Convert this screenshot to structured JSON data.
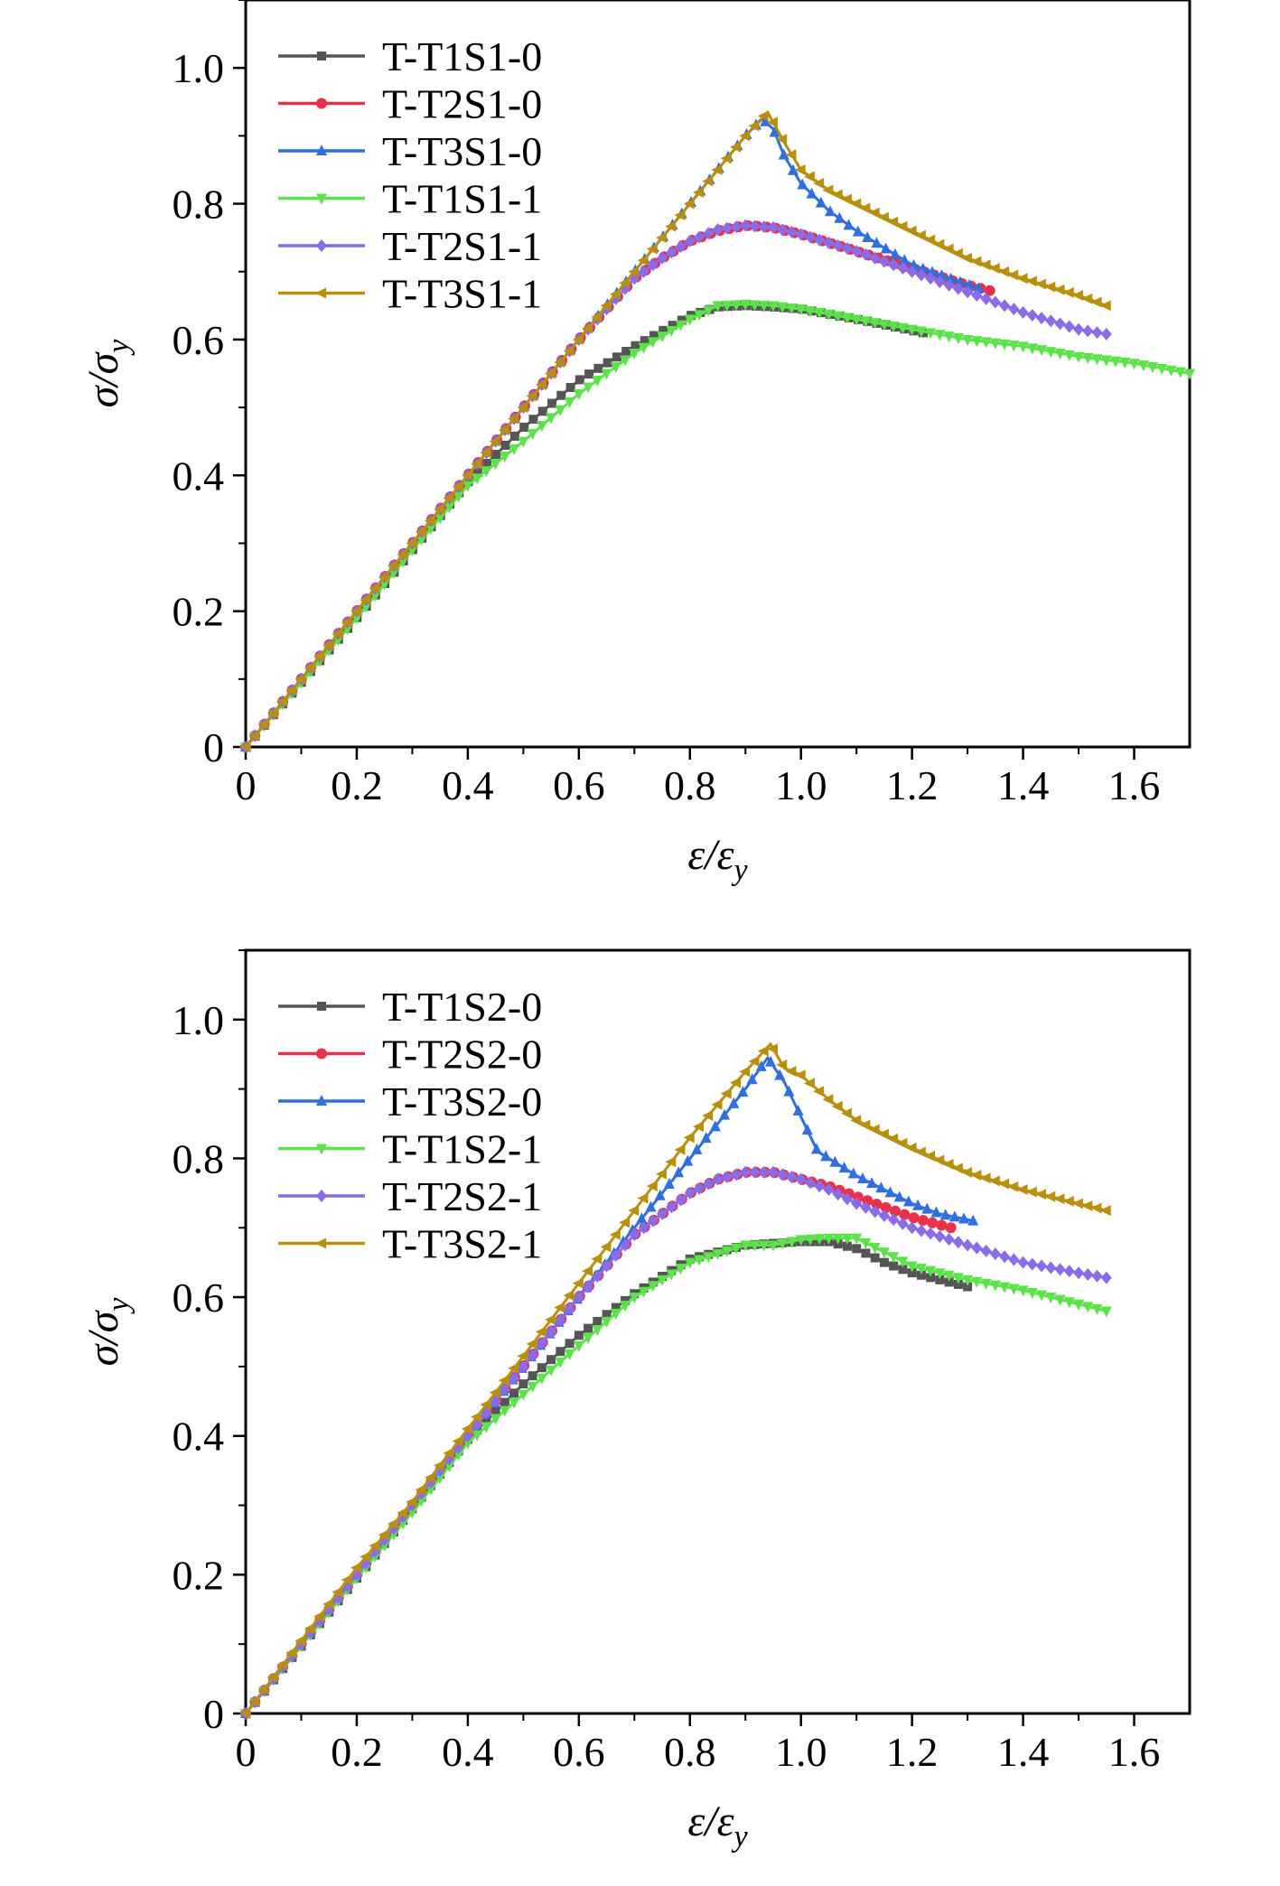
{
  "chart_data": [
    {
      "type": "line",
      "title": "",
      "xlabel": "ε/ε",
      "xlabel_sub": "y",
      "ylabel": "σ/σ",
      "ylabel_sub": "y",
      "xlim": [
        0,
        1.7
      ],
      "ylim": [
        0,
        1.1
      ],
      "xticks": [
        0,
        0.2,
        0.4,
        0.6,
        0.8,
        1.0,
        1.2,
        1.4,
        1.6
      ],
      "xtick_labels": [
        "0",
        "0.2",
        "0.4",
        "0.6",
        "0.8",
        "1.0",
        "1.2",
        "1.4",
        "1.6"
      ],
      "yticks": [
        0,
        0.2,
        0.4,
        0.6,
        0.8,
        1.0
      ],
      "ytick_labels": [
        "0",
        "0.2",
        "0.4",
        "0.6",
        "0.8",
        "1.0"
      ],
      "legend_position": "top-left",
      "series": [
        {
          "name": "T-T1S1-0",
          "color": "#555555",
          "marker": "square",
          "x": [
            0,
            0.1,
            0.2,
            0.3,
            0.4,
            0.5,
            0.6,
            0.7,
            0.8,
            0.85,
            0.9,
            0.95,
            1.0,
            1.1,
            1.22
          ],
          "y": [
            0,
            0.095,
            0.19,
            0.29,
            0.39,
            0.47,
            0.54,
            0.59,
            0.635,
            0.648,
            0.65,
            0.648,
            0.645,
            0.63,
            0.61
          ]
        },
        {
          "name": "T-T2S1-0",
          "color": "#e8314a",
          "marker": "circle",
          "x": [
            0,
            0.1,
            0.2,
            0.3,
            0.4,
            0.5,
            0.6,
            0.7,
            0.75,
            0.8,
            0.85,
            0.9,
            0.95,
            1.0,
            1.1,
            1.2,
            1.3,
            1.34
          ],
          "y": [
            0,
            0.1,
            0.2,
            0.3,
            0.4,
            0.5,
            0.6,
            0.69,
            0.72,
            0.745,
            0.76,
            0.768,
            0.765,
            0.755,
            0.73,
            0.705,
            0.68,
            0.672
          ]
        },
        {
          "name": "T-T3S1-0",
          "color": "#2f6fe0",
          "marker": "triangle-up",
          "x": [
            0,
            0.1,
            0.2,
            0.3,
            0.4,
            0.5,
            0.6,
            0.7,
            0.8,
            0.9,
            0.93,
            0.95,
            0.97,
            1.0,
            1.05,
            1.1,
            1.15,
            1.2,
            1.25,
            1.32
          ],
          "y": [
            0,
            0.1,
            0.2,
            0.3,
            0.4,
            0.5,
            0.6,
            0.7,
            0.8,
            0.9,
            0.925,
            0.91,
            0.87,
            0.83,
            0.79,
            0.76,
            0.735,
            0.71,
            0.695,
            0.675
          ]
        },
        {
          "name": "T-T1S1-1",
          "color": "#5ce34a",
          "marker": "triangle-down",
          "x": [
            0,
            0.1,
            0.2,
            0.3,
            0.4,
            0.5,
            0.6,
            0.7,
            0.8,
            0.85,
            0.9,
            0.95,
            1.0,
            1.1,
            1.2,
            1.3,
            1.4,
            1.5,
            1.6,
            1.7
          ],
          "y": [
            0,
            0.095,
            0.19,
            0.29,
            0.385,
            0.45,
            0.52,
            0.58,
            0.63,
            0.65,
            0.652,
            0.65,
            0.645,
            0.63,
            0.615,
            0.6,
            0.59,
            0.575,
            0.565,
            0.55
          ]
        },
        {
          "name": "T-T2S1-1",
          "color": "#8a6be8",
          "marker": "diamond",
          "x": [
            0,
            0.1,
            0.2,
            0.3,
            0.4,
            0.5,
            0.6,
            0.7,
            0.75,
            0.8,
            0.85,
            0.9,
            0.95,
            1.0,
            1.1,
            1.2,
            1.3,
            1.4,
            1.5,
            1.55
          ],
          "y": [
            0,
            0.1,
            0.2,
            0.3,
            0.4,
            0.5,
            0.6,
            0.69,
            0.72,
            0.745,
            0.762,
            0.768,
            0.765,
            0.755,
            0.73,
            0.7,
            0.67,
            0.64,
            0.615,
            0.608
          ]
        },
        {
          "name": "T-T3S1-1",
          "color": "#b8900e",
          "marker": "triangle-left",
          "x": [
            0,
            0.1,
            0.2,
            0.3,
            0.4,
            0.5,
            0.6,
            0.7,
            0.8,
            0.9,
            0.94,
            0.97,
            1.0,
            1.05,
            1.1,
            1.2,
            1.3,
            1.4,
            1.5,
            1.55
          ],
          "y": [
            0,
            0.1,
            0.2,
            0.3,
            0.4,
            0.5,
            0.6,
            0.7,
            0.8,
            0.9,
            0.935,
            0.89,
            0.85,
            0.82,
            0.8,
            0.76,
            0.72,
            0.69,
            0.665,
            0.65
          ]
        }
      ]
    },
    {
      "type": "line",
      "title": "",
      "xlabel": "ε/ε",
      "xlabel_sub": "y",
      "ylabel": "σ/σ",
      "ylabel_sub": "y",
      "xlim": [
        0,
        1.7
      ],
      "ylim": [
        0,
        1.1
      ],
      "xticks": [
        0,
        0.2,
        0.4,
        0.6,
        0.8,
        1.0,
        1.2,
        1.4,
        1.6
      ],
      "xtick_labels": [
        "0",
        "0.2",
        "0.4",
        "0.6",
        "0.8",
        "1.0",
        "1.2",
        "1.4",
        "1.6"
      ],
      "yticks": [
        0,
        0.2,
        0.4,
        0.6,
        0.8,
        1.0
      ],
      "ytick_labels": [
        "0",
        "0.2",
        "0.4",
        "0.6",
        "0.8",
        "1.0"
      ],
      "legend_position": "top-left",
      "series": [
        {
          "name": "T-T1S2-0",
          "color": "#555555",
          "marker": "square",
          "x": [
            0,
            0.1,
            0.2,
            0.3,
            0.4,
            0.5,
            0.6,
            0.7,
            0.8,
            0.9,
            1.0,
            1.05,
            1.1,
            1.15,
            1.2,
            1.25,
            1.3
          ],
          "y": [
            0,
            0.097,
            0.195,
            0.295,
            0.395,
            0.475,
            0.545,
            0.605,
            0.655,
            0.675,
            0.68,
            0.68,
            0.67,
            0.65,
            0.635,
            0.625,
            0.615
          ]
        },
        {
          "name": "T-T2S2-0",
          "color": "#e8314a",
          "marker": "circle",
          "x": [
            0,
            0.1,
            0.2,
            0.3,
            0.4,
            0.5,
            0.6,
            0.7,
            0.8,
            0.85,
            0.9,
            0.95,
            1.0,
            1.05,
            1.1,
            1.15,
            1.2,
            1.27
          ],
          "y": [
            0,
            0.1,
            0.2,
            0.3,
            0.4,
            0.5,
            0.6,
            0.69,
            0.75,
            0.77,
            0.78,
            0.78,
            0.77,
            0.76,
            0.745,
            0.73,
            0.715,
            0.7
          ]
        },
        {
          "name": "T-T3S2-0",
          "color": "#2f6fe0",
          "marker": "triangle-up",
          "x": [
            0,
            0.1,
            0.2,
            0.3,
            0.4,
            0.5,
            0.6,
            0.7,
            0.8,
            0.9,
            0.94,
            0.97,
            1.0,
            1.03,
            1.07,
            1.1,
            1.15,
            1.2,
            1.25,
            1.31
          ],
          "y": [
            0,
            0.1,
            0.2,
            0.3,
            0.4,
            0.5,
            0.6,
            0.7,
            0.8,
            0.9,
            0.945,
            0.91,
            0.86,
            0.81,
            0.79,
            0.775,
            0.755,
            0.735,
            0.72,
            0.71
          ]
        },
        {
          "name": "T-T1S2-1",
          "color": "#5ce34a",
          "marker": "triangle-down",
          "x": [
            0,
            0.1,
            0.2,
            0.3,
            0.4,
            0.5,
            0.6,
            0.7,
            0.8,
            0.9,
            0.95,
            1.0,
            1.05,
            1.1,
            1.15,
            1.2,
            1.3,
            1.4,
            1.5,
            1.55
          ],
          "y": [
            0,
            0.097,
            0.195,
            0.29,
            0.39,
            0.46,
            0.53,
            0.6,
            0.65,
            0.675,
            0.675,
            0.683,
            0.685,
            0.685,
            0.665,
            0.645,
            0.625,
            0.61,
            0.59,
            0.58
          ]
        },
        {
          "name": "T-T2S2-1",
          "color": "#8a6be8",
          "marker": "diamond",
          "x": [
            0,
            0.1,
            0.2,
            0.3,
            0.4,
            0.5,
            0.6,
            0.7,
            0.8,
            0.85,
            0.9,
            0.95,
            1.0,
            1.05,
            1.1,
            1.2,
            1.3,
            1.4,
            1.5,
            1.55
          ],
          "y": [
            0,
            0.1,
            0.2,
            0.3,
            0.4,
            0.5,
            0.6,
            0.69,
            0.75,
            0.77,
            0.78,
            0.78,
            0.77,
            0.755,
            0.735,
            0.7,
            0.675,
            0.65,
            0.635,
            0.628
          ]
        },
        {
          "name": "T-T3S2-1",
          "color": "#b8900e",
          "marker": "triangle-left",
          "x": [
            0,
            0.1,
            0.2,
            0.3,
            0.4,
            0.5,
            0.6,
            0.7,
            0.8,
            0.9,
            0.945,
            0.97,
            1.0,
            1.05,
            1.1,
            1.2,
            1.3,
            1.4,
            1.5,
            1.55
          ],
          "y": [
            0,
            0.105,
            0.21,
            0.305,
            0.41,
            0.515,
            0.62,
            0.725,
            0.83,
            0.925,
            0.965,
            0.93,
            0.92,
            0.885,
            0.855,
            0.815,
            0.78,
            0.755,
            0.735,
            0.725
          ]
        }
      ]
    }
  ]
}
